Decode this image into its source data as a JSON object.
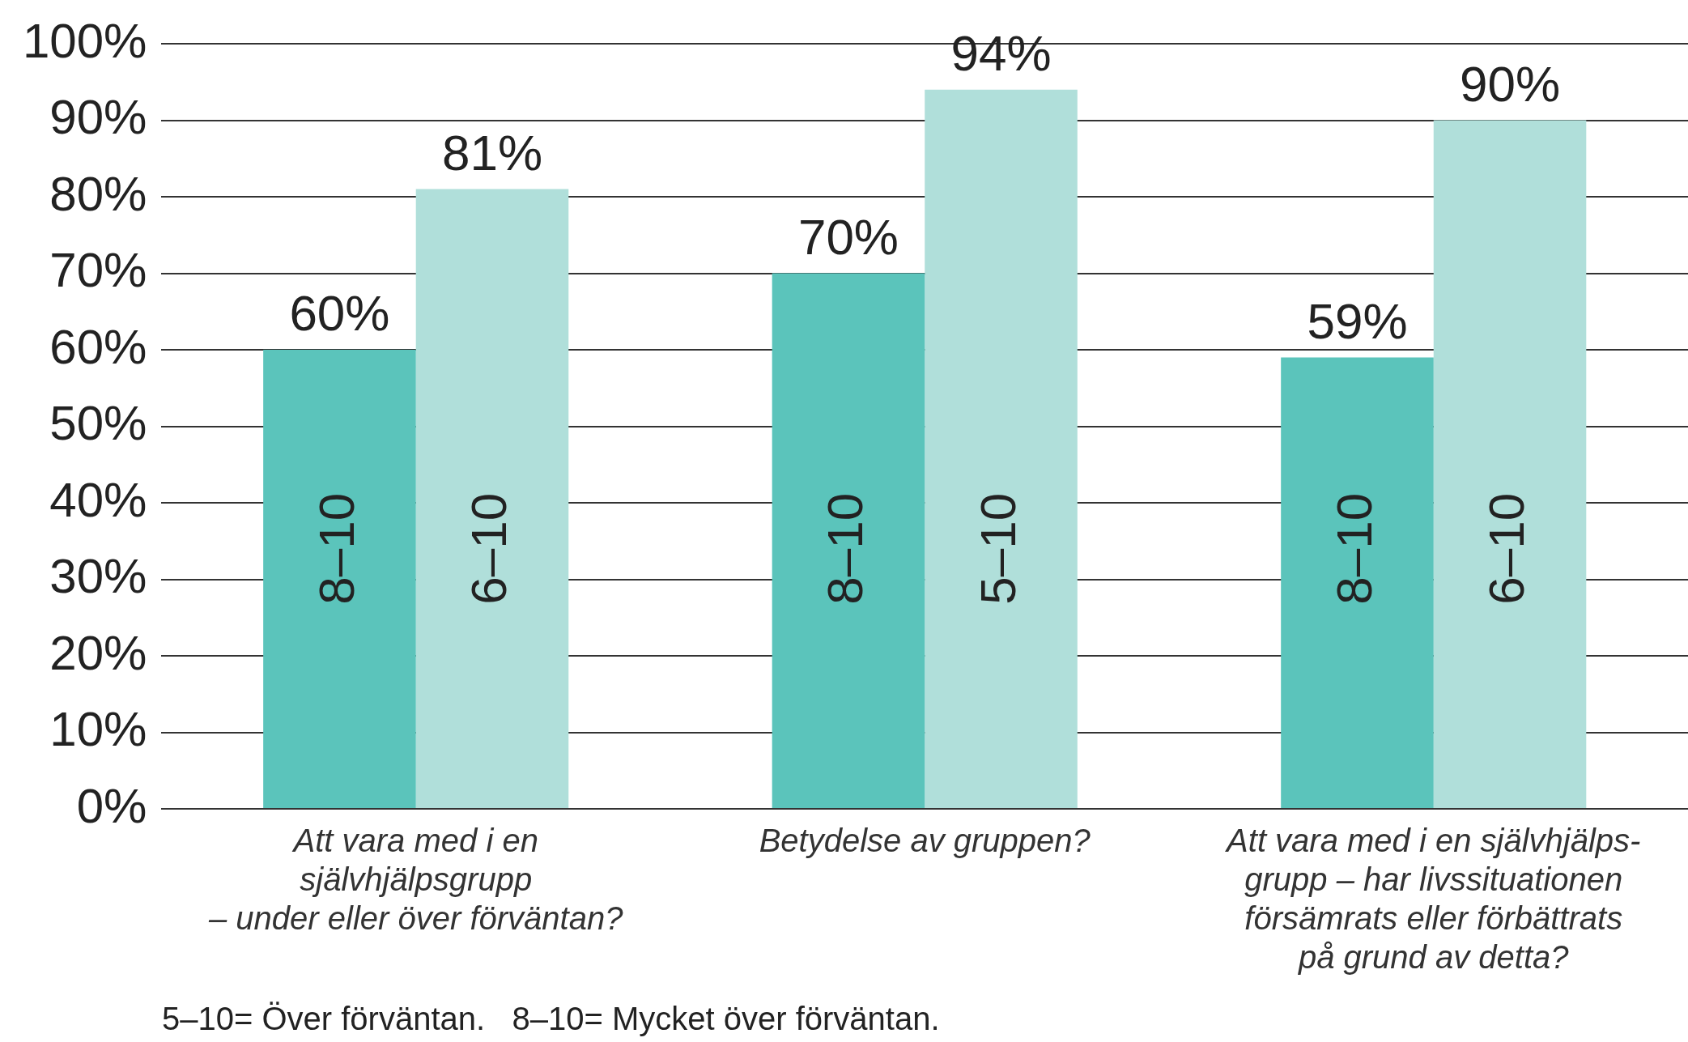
{
  "chart_data": {
    "type": "bar",
    "categories": [
      "Att vara med i en\nsjälvhjälpsgrupp\n– under eller över förväntan?",
      "Betydelse av gruppen?",
      "Att vara med i en självhjälps-\ngrupp – har livssituationen\nförsämrats eller förbättrats\npå grund av detta?"
    ],
    "series": [
      {
        "color": "#5bc4bb",
        "values": [
          60,
          70,
          59
        ],
        "value_labels": [
          "60%",
          "70%",
          "59%"
        ]
      },
      {
        "color": "#b0dfda",
        "values": [
          81,
          94,
          90
        ],
        "value_labels": [
          "81%",
          "94%",
          "90%"
        ]
      }
    ],
    "ylim": [
      0,
      100
    ],
    "yticks": [
      {
        "value": 0,
        "label": "0%"
      },
      {
        "value": 10,
        "label": "10%"
      },
      {
        "value": 20,
        "label": "20%"
      },
      {
        "value": 30,
        "label": "30%"
      },
      {
        "value": 40,
        "label": "40%"
      },
      {
        "value": 50,
        "label": "50%"
      },
      {
        "value": 60,
        "label": "60%"
      },
      {
        "value": 70,
        "label": "70%"
      },
      {
        "value": 80,
        "label": "80%"
      },
      {
        "value": 90,
        "label": "90%"
      },
      {
        "value": 100,
        "label": "100%"
      }
    ],
    "grid": "y",
    "annotations": [
      {
        "text": "8–10",
        "x": "Att vara med i en\nsjälvhjälpsgrupp\n– under eller över förväntan?",
        "y": 34
      },
      {
        "text": "6–10",
        "x": "Att vara med i en\nsjälvhjälpsgrupp\n– under eller över förväntan?",
        "y": 34
      },
      {
        "text": "8–10",
        "x": "Betydelse av gruppen?",
        "y": 34
      },
      {
        "text": "5–10",
        "x": "Betydelse av gruppen?",
        "y": 34
      },
      {
        "text": "8–10",
        "x": "Att vara med i en självhjälps-\ngrupp – har livssituationen\nförsämrats eller förbättrats\npå grund av detta?",
        "y": 34
      },
      {
        "text": "6–10",
        "x": "Att vara med i en självhjälps-\ngrupp – har livssituationen\nförsämrats eller förbättrats\npå grund av detta?",
        "y": 34
      },
      "5–10= Över förväntan.   8–10= Mycket över förväntan."
    ]
  }
}
